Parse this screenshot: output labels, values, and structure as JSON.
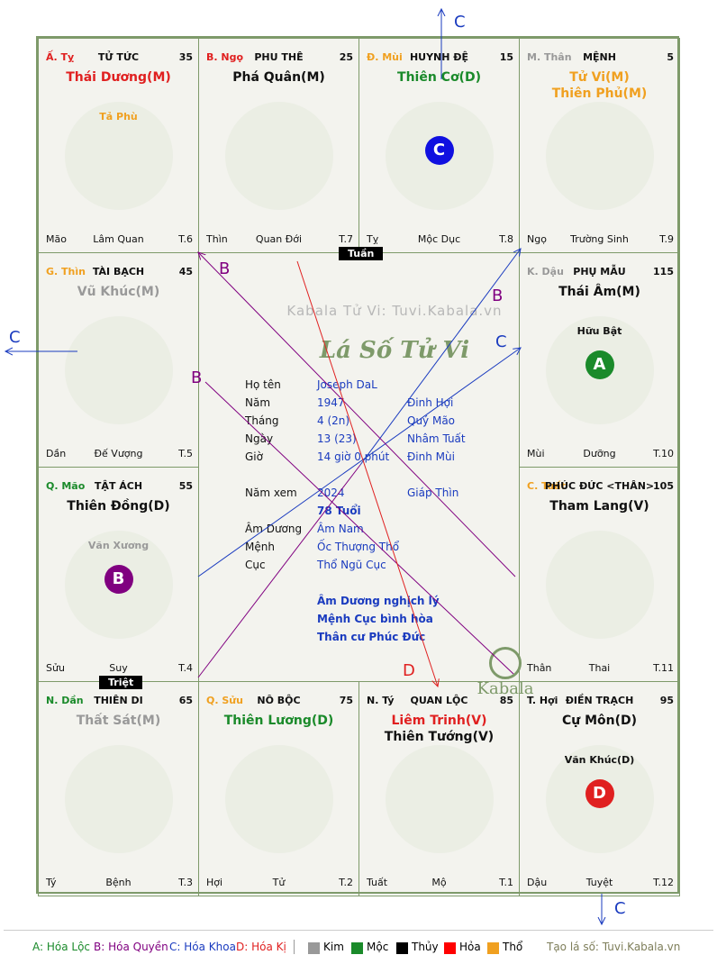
{
  "palaces": [
    {
      "id": "ty",
      "branch": "Ấ. Tỵ",
      "branch_color": "#e02020",
      "name": "TỬ TỨC",
      "num": "35",
      "stars": [
        {
          "t": "Thái Dương(M)",
          "c": "#e02020"
        }
      ],
      "minor": [
        {
          "t": "Tả Phù",
          "c": "#f0a020"
        }
      ],
      "ft_l": "Mão",
      "ft_m": "Lâm Quan",
      "ft_r": "T.6"
    },
    {
      "id": "ngo",
      "branch": "B. Ngọ",
      "branch_color": "#e02020",
      "name": "PHU THÊ",
      "num": "25",
      "stars": [
        {
          "t": "Phá Quân(M)",
          "c": "#111111"
        }
      ],
      "minor": [],
      "ft_l": "Thìn",
      "ft_m": "Quan Đới",
      "ft_r": "T.7"
    },
    {
      "id": "mui",
      "branch": "Đ. Mùi",
      "branch_color": "#f0a020",
      "name": "HUYNH ĐỆ",
      "num": "15",
      "stars": [
        {
          "t": "Thiên Cơ(D)",
          "c": "#1a8a2a"
        }
      ],
      "minor": [],
      "ft_l": "Tỵ",
      "ft_m": "Mộc Dục",
      "ft_r": "T.8"
    },
    {
      "id": "than",
      "branch": "M. Thân",
      "branch_color": "#999999",
      "name": "MỆNH",
      "num": "5",
      "stars": [
        {
          "t": "Tử Vi(M)",
          "c": "#f0a020"
        },
        {
          "t": "Thiên Phủ(M)",
          "c": "#f0a020"
        }
      ],
      "minor": [],
      "ft_l": "Ngọ",
      "ft_m": "Trường Sinh",
      "ft_r": "T.9"
    },
    {
      "id": "thin",
      "branch": "G. Thìn",
      "branch_color": "#f0a020",
      "name": "TÀI BẠCH",
      "num": "45",
      "stars": [
        {
          "t": "Vũ Khúc(M)",
          "c": "#999999"
        }
      ],
      "minor": [],
      "ft_l": "Dần",
      "ft_m": "Đế Vượng",
      "ft_r": "T.5"
    },
    {
      "id": "dau",
      "branch": "K. Dậu",
      "branch_color": "#999999",
      "name": "PHỤ MẪU",
      "num": "115",
      "stars": [
        {
          "t": "Thái Âm(M)",
          "c": "#111111"
        }
      ],
      "minor": [
        {
          "t": "Hữu Bật",
          "c": "#111111"
        }
      ],
      "ft_l": "Mùi",
      "ft_m": "Dưỡng",
      "ft_r": "T.10"
    },
    {
      "id": "mao",
      "branch": "Q. Mão",
      "branch_color": "#1a8a2a",
      "name": "TẬT ÁCH",
      "num": "55",
      "stars": [
        {
          "t": "Thiên Đồng(D)",
          "c": "#111111"
        }
      ],
      "minor": [
        {
          "t": "Văn Xương",
          "c": "#999999"
        }
      ],
      "ft_l": "Sửu",
      "ft_m": "Suy",
      "ft_r": "T.4"
    },
    {
      "id": "tuat",
      "branch": "C. Tuất",
      "branch_color": "#f0a020",
      "name": "PHÚC ĐỨC <THÂN>",
      "num": "105",
      "stars": [
        {
          "t": "Tham Lang(V)",
          "c": "#111111"
        }
      ],
      "minor": [],
      "ft_l": "Thân",
      "ft_m": "Thai",
      "ft_r": "T.11"
    },
    {
      "id": "dan",
      "branch": "N. Dần",
      "branch_color": "#1a8a2a",
      "name": "THIÊN DI",
      "num": "65",
      "stars": [
        {
          "t": "Thất Sát(M)",
          "c": "#999999"
        }
      ],
      "minor": [],
      "ft_l": "Tý",
      "ft_m": "Bệnh",
      "ft_r": "T.3"
    },
    {
      "id": "suu",
      "branch": "Q. Sửu",
      "branch_color": "#f0a020",
      "name": "NÔ BỘC",
      "num": "75",
      "stars": [
        {
          "t": "Thiên Lương(D)",
          "c": "#1a8a2a"
        }
      ],
      "minor": [],
      "ft_l": "Hợi",
      "ft_m": "Tử",
      "ft_r": "T.2"
    },
    {
      "id": "tyy",
      "branch": "N. Tý",
      "branch_color": "#111111",
      "name": "QUAN LỘC",
      "num": "85",
      "stars": [
        {
          "t": "Liêm Trinh(V)",
          "c": "#e02020"
        },
        {
          "t": "Thiên Tướng(V)",
          "c": "#111111"
        }
      ],
      "minor": [],
      "ft_l": "Tuất",
      "ft_m": "Mộ",
      "ft_r": "T.1"
    },
    {
      "id": "hoi",
      "branch": "T. Hợi",
      "branch_color": "#111111",
      "name": "ĐIỀN TRẠCH",
      "num": "95",
      "stars": [
        {
          "t": "Cự Môn(D)",
          "c": "#111111"
        }
      ],
      "minor": [
        {
          "t": "Văn Khúc(D)",
          "c": "#111111"
        }
      ],
      "ft_l": "Dậu",
      "ft_m": "Tuyệt",
      "ft_r": "T.12"
    }
  ],
  "badges": {
    "mui": {
      "letter": "C",
      "color": "#1010e0"
    },
    "dau": {
      "letter": "A",
      "color": "#1a8a2a"
    },
    "mao": {
      "letter": "B",
      "color": "#800080"
    },
    "hoi": {
      "letter": "D",
      "color": "#e02020"
    }
  },
  "tags": {
    "tuan": "Tuần",
    "triet": "Triệt"
  },
  "center": {
    "watermark": "Kabala Tử Vi: Tuvi.Kabala.vn",
    "title": "Lá Số Tử Vi",
    "rows": [
      {
        "label": "Họ tên",
        "v1": "Joseph DaL",
        "v2": ""
      },
      {
        "label": "Năm",
        "v1": "1947",
        "v2": "Đinh Hợi"
      },
      {
        "label": "Tháng",
        "v1": "4  (2n)",
        "v2": "Quý Mão"
      },
      {
        "label": "Ngày",
        "v1": "13  (23)",
        "v2": "Nhâm Tuất"
      },
      {
        "label": "Giờ",
        "v1": "14 giờ 0 phút",
        "v2": "Đinh Mùi"
      }
    ],
    "year_label": "Năm xem",
    "year_v1": "2024",
    "year_v2": "Giáp Thìn",
    "age": "78 Tuổi",
    "rows2": [
      {
        "label": "Âm Dương",
        "v1": "Âm Nam"
      },
      {
        "label": "Mệnh",
        "v1": "Ốc Thượng Thổ"
      },
      {
        "label": "Cục",
        "v1": "Thổ Ngũ Cục"
      }
    ],
    "notes": [
      "Âm Dương nghịch lý",
      "Mệnh Cục bình hòa",
      "Thân cư Phúc Đức"
    ],
    "logo": "Kabala"
  },
  "arrow_labels": {
    "c_top": "C",
    "c_left": "C",
    "c_bottom": "C",
    "c_right": "C",
    "b1": "B",
    "b2": "B",
    "b3": "B",
    "d": "D"
  },
  "legend": {
    "a": "A: Hóa Lộc",
    "b": "B: Hóa Quyền",
    "c": "C: Hóa Khoa",
    "d": "D: Hóa Kị",
    "kim": "Kim",
    "moc": "Mộc",
    "thuy": "Thủy",
    "hoa": "Hỏa",
    "tho": "Thổ",
    "site": "Tạo lá số: Tuvi.Kabala.vn",
    "colors": {
      "kim": "#999999",
      "moc": "#1a8a2a",
      "thuy": "#000000",
      "hoa": "#ff0000",
      "tho": "#f0a020"
    }
  }
}
